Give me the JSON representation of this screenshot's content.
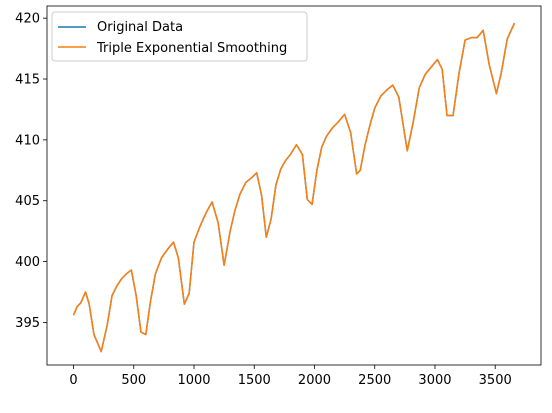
{
  "chart_data": {
    "type": "line",
    "title": "",
    "xlabel": "",
    "ylabel": "",
    "xlim": [
      -220,
      3880
    ],
    "ylim": [
      391.5,
      421.0
    ],
    "xticks": [
      0,
      500,
      1000,
      1500,
      2000,
      2500,
      3000,
      3500
    ],
    "yticks": [
      395,
      400,
      405,
      410,
      415,
      420
    ],
    "xtick_labels": [
      "0",
      "500",
      "1000",
      "1500",
      "2000",
      "2500",
      "3000",
      "3500"
    ],
    "ytick_labels": [
      "395",
      "400",
      "405",
      "410",
      "415",
      "420"
    ],
    "grid": false,
    "legend_position": "top-left",
    "x": [
      0,
      30,
      60,
      100,
      130,
      170,
      230,
      280,
      320,
      360,
      400,
      440,
      480,
      520,
      560,
      600,
      640,
      680,
      730,
      780,
      830,
      870,
      920,
      960,
      1000,
      1050,
      1100,
      1150,
      1200,
      1250,
      1300,
      1340,
      1380,
      1430,
      1480,
      1520,
      1560,
      1600,
      1640,
      1680,
      1720,
      1760,
      1800,
      1850,
      1900,
      1940,
      1980,
      2020,
      2060,
      2100,
      2150,
      2200,
      2250,
      2300,
      2350,
      2380,
      2420,
      2460,
      2500,
      2550,
      2600,
      2650,
      2700,
      2770,
      2820,
      2870,
      2920,
      2970,
      3020,
      3060,
      3100,
      3150,
      3200,
      3250,
      3300,
      3350,
      3400,
      3450,
      3510,
      3550,
      3600,
      3660
    ],
    "series": [
      {
        "name": "Original Data",
        "color": "#1f77b4",
        "values": [
          395.6,
          396.3,
          396.6,
          397.5,
          396.5,
          394.0,
          392.6,
          394.8,
          397.2,
          398.0,
          398.6,
          399.0,
          399.3,
          397.2,
          394.2,
          394.0,
          396.8,
          399.0,
          400.3,
          401.0,
          401.6,
          400.3,
          396.5,
          397.4,
          401.6,
          402.9,
          404.0,
          404.9,
          403.2,
          399.7,
          402.5,
          404.2,
          405.5,
          406.5,
          406.9,
          407.3,
          405.5,
          402.0,
          403.5,
          406.3,
          407.6,
          408.3,
          408.8,
          409.6,
          408.8,
          405.1,
          404.7,
          407.5,
          409.4,
          410.3,
          411.0,
          411.5,
          412.1,
          410.6,
          407.2,
          407.5,
          409.6,
          411.2,
          412.6,
          413.6,
          414.1,
          414.5,
          413.5,
          409.1,
          411.5,
          414.3,
          415.4,
          416.0,
          416.6,
          415.8,
          412.0,
          412.0,
          415.5,
          418.2,
          418.4,
          418.4,
          419.0,
          416.2,
          413.8,
          415.5,
          418.3,
          419.6
        ]
      },
      {
        "name": "Triple Exponential Smoothing",
        "color": "#ff7f0e",
        "values": [
          395.6,
          396.3,
          396.6,
          397.5,
          396.5,
          394.0,
          392.6,
          394.8,
          397.2,
          398.0,
          398.6,
          399.0,
          399.3,
          397.2,
          394.2,
          394.0,
          396.8,
          399.0,
          400.3,
          401.0,
          401.6,
          400.3,
          396.5,
          397.4,
          401.6,
          402.9,
          404.0,
          404.9,
          403.2,
          399.7,
          402.5,
          404.2,
          405.5,
          406.5,
          406.9,
          407.3,
          405.5,
          402.0,
          403.5,
          406.3,
          407.6,
          408.3,
          408.8,
          409.6,
          408.8,
          405.1,
          404.7,
          407.5,
          409.4,
          410.3,
          411.0,
          411.5,
          412.1,
          410.6,
          407.2,
          407.5,
          409.6,
          411.2,
          412.6,
          413.6,
          414.1,
          414.5,
          413.5,
          409.1,
          411.5,
          414.3,
          415.4,
          416.0,
          416.6,
          415.8,
          412.0,
          412.0,
          415.5,
          418.2,
          418.4,
          418.4,
          419.0,
          416.2,
          413.8,
          415.5,
          418.3,
          419.6
        ]
      }
    ]
  }
}
